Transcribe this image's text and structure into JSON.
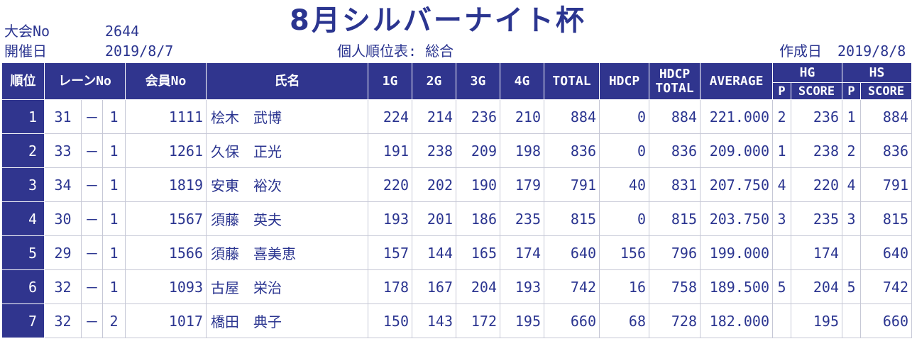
{
  "header": {
    "title": "8月シルバーナイト杯",
    "tournament_no_label": "大会No",
    "tournament_no": "2644",
    "date_label": "開催日",
    "date": "2019/8/7",
    "report_name": "個人順位表: 総合",
    "created_label": "作成日",
    "created_date": "2019/8/8"
  },
  "columns": {
    "rank": "順位",
    "lane": "レーンNo",
    "member": "会員No",
    "name": "氏名",
    "g1": "1G",
    "g2": "2G",
    "g3": "3G",
    "g4": "4G",
    "total": "TOTAL",
    "hdcp": "HDCP",
    "hdcp_total_1": "HDCP",
    "hdcp_total_2": "TOTAL",
    "average": "AVERAGE",
    "hg": "HG",
    "hs": "HS",
    "p": "P",
    "score": "SCORE"
  },
  "rows": [
    {
      "rank": "1",
      "lane": "31",
      "dash": "－",
      "lane_sub": "1",
      "member": "1111",
      "name": "桧木　武博",
      "g1": "224",
      "g2": "214",
      "g3": "236",
      "g4": "210",
      "total": "884",
      "hdcp": "0",
      "hdcp_total": "884",
      "average": "221.000",
      "hg_p": "2",
      "hg_score": "236",
      "hs_p": "1",
      "hs_score": "884"
    },
    {
      "rank": "2",
      "lane": "33",
      "dash": "－",
      "lane_sub": "1",
      "member": "1261",
      "name": "久保　正光",
      "g1": "191",
      "g2": "238",
      "g3": "209",
      "g4": "198",
      "total": "836",
      "hdcp": "0",
      "hdcp_total": "836",
      "average": "209.000",
      "hg_p": "1",
      "hg_score": "238",
      "hs_p": "2",
      "hs_score": "836"
    },
    {
      "rank": "3",
      "lane": "34",
      "dash": "－",
      "lane_sub": "1",
      "member": "1819",
      "name": "安東　裕次",
      "g1": "220",
      "g2": "202",
      "g3": "190",
      "g4": "179",
      "total": "791",
      "hdcp": "40",
      "hdcp_total": "831",
      "average": "207.750",
      "hg_p": "4",
      "hg_score": "220",
      "hs_p": "4",
      "hs_score": "791"
    },
    {
      "rank": "4",
      "lane": "30",
      "dash": "－",
      "lane_sub": "1",
      "member": "1567",
      "name": "須藤　英夫",
      "g1": "193",
      "g2": "201",
      "g3": "186",
      "g4": "235",
      "total": "815",
      "hdcp": "0",
      "hdcp_total": "815",
      "average": "203.750",
      "hg_p": "3",
      "hg_score": "235",
      "hs_p": "3",
      "hs_score": "815"
    },
    {
      "rank": "5",
      "lane": "29",
      "dash": "－",
      "lane_sub": "1",
      "member": "1566",
      "name": "須藤　喜美恵",
      "g1": "157",
      "g2": "144",
      "g3": "165",
      "g4": "174",
      "total": "640",
      "hdcp": "156",
      "hdcp_total": "796",
      "average": "199.000",
      "hg_p": "",
      "hg_score": "174",
      "hs_p": "",
      "hs_score": "640"
    },
    {
      "rank": "6",
      "lane": "32",
      "dash": "－",
      "lane_sub": "1",
      "member": "1093",
      "name": "古屋　栄治",
      "g1": "178",
      "g2": "167",
      "g3": "204",
      "g4": "193",
      "total": "742",
      "hdcp": "16",
      "hdcp_total": "758",
      "average": "189.500",
      "hg_p": "5",
      "hg_score": "204",
      "hs_p": "5",
      "hs_score": "742"
    },
    {
      "rank": "7",
      "lane": "32",
      "dash": "－",
      "lane_sub": "2",
      "member": "1017",
      "name": "橋田　典子",
      "g1": "150",
      "g2": "143",
      "g3": "172",
      "g4": "195",
      "total": "660",
      "hdcp": "68",
      "hdcp_total": "728",
      "average": "182.000",
      "hg_p": "",
      "hg_score": "195",
      "hs_p": "",
      "hs_score": "660"
    }
  ]
}
